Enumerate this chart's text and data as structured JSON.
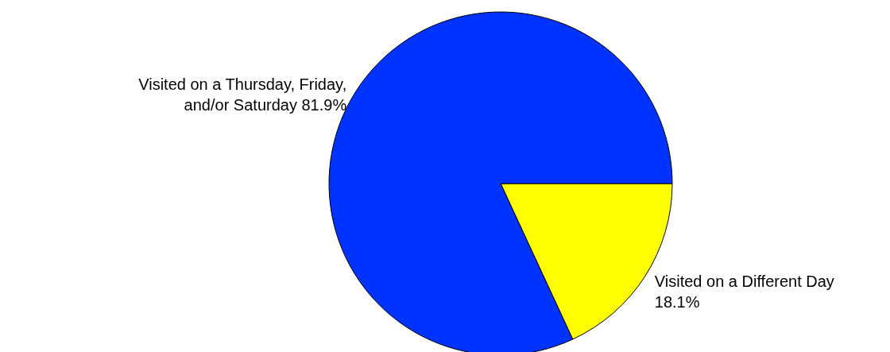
{
  "chart_data": {
    "type": "pie",
    "categories": [
      "Visited on a Different Day",
      "Visited on a Thursday, Friday, and/or Saturday"
    ],
    "values": [
      18.1,
      81.9
    ],
    "colors": [
      "#ffff00",
      "#0033ff"
    ],
    "value_labels": [
      "18.1%",
      "81.9%"
    ]
  }
}
